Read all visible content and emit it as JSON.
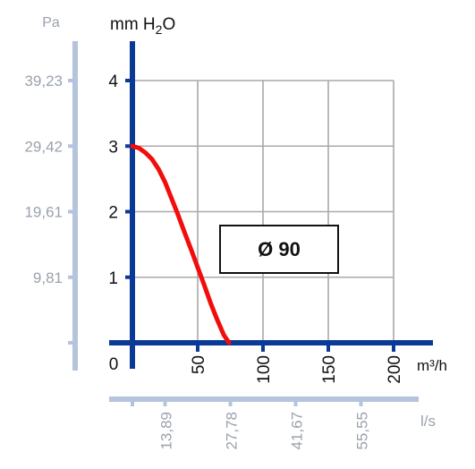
{
  "chart_data": {
    "type": "line",
    "left_axis_unit": "Pa",
    "left_axis_ticks": [
      "39,23",
      "29,42",
      "19,61",
      "9,81"
    ],
    "y_unit_prefix": "mm H",
    "y_unit_sub": "2",
    "y_unit_suffix": "O",
    "y_ticks": [
      "4",
      "3",
      "2",
      "1"
    ],
    "y_values": [
      4,
      3,
      2,
      1
    ],
    "ylim": [
      0,
      4.3
    ],
    "origin_label": "0",
    "x_unit": "m³/h",
    "x_ticks": [
      "50",
      "100",
      "150",
      "200"
    ],
    "x_values": [
      50,
      100,
      150,
      200
    ],
    "xlim": [
      0,
      230
    ],
    "bottom_axis_unit": "l/s",
    "bottom_axis_ticks": [
      "13,89",
      "27,78",
      "41,67",
      "55,55"
    ],
    "annotation": "Ø 90",
    "grid": true,
    "colors": {
      "axis": "#0a3a96",
      "secondary_axis": "#b4c4dc",
      "curve": "#f20d0d",
      "grid": "#a9a9a9",
      "secondary_text": "#9aa2ad"
    },
    "series": [
      {
        "x": [
          0,
          5,
          10,
          15,
          20,
          25,
          30,
          35,
          40,
          45,
          50,
          55,
          60,
          65,
          70,
          74
        ],
        "y": [
          3.0,
          2.97,
          2.9,
          2.8,
          2.65,
          2.45,
          2.2,
          1.95,
          1.68,
          1.42,
          1.15,
          0.88,
          0.6,
          0.35,
          0.12,
          0.0
        ]
      }
    ]
  }
}
